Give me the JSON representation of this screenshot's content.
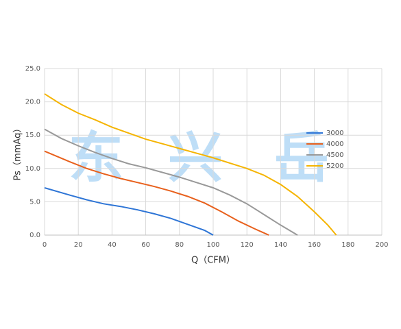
{
  "chart_data": {
    "type": "line",
    "x_label": "Q（CFM）",
    "y_label": "Ps（mmAq）",
    "watermark": [
      "东",
      "兴",
      "岳"
    ],
    "xlim": [
      0,
      200
    ],
    "xticks": [
      0,
      20,
      40,
      60,
      80,
      100,
      120,
      140,
      160,
      180,
      200
    ],
    "ylim": [
      0,
      25
    ],
    "yticks": [
      {
        "value": 0,
        "label": "0.0"
      },
      {
        "value": 5,
        "label": "5.0"
      },
      {
        "value": 10,
        "label": "10.0"
      },
      {
        "value": 15,
        "label": "15.0"
      },
      {
        "value": 20,
        "label": "20.0"
      },
      {
        "value": 25,
        "label": "25.0"
      }
    ],
    "grid": true,
    "legend": "right",
    "series": [
      {
        "name": "3000",
        "color": "#2e75d6",
        "x": [
          0,
          15,
          25,
          35,
          45,
          55,
          65,
          75,
          85,
          95,
          100
        ],
        "values": [
          7.1,
          6.0,
          5.3,
          4.7,
          4.3,
          3.8,
          3.2,
          2.5,
          1.6,
          0.7,
          0
        ]
      },
      {
        "name": "4000",
        "color": "#e8601c",
        "x": [
          0,
          15,
          25,
          35,
          45,
          55,
          65,
          75,
          85,
          95,
          105,
          115,
          125,
          133
        ],
        "values": [
          12.6,
          11.0,
          10.0,
          9.2,
          8.5,
          7.9,
          7.3,
          6.6,
          5.8,
          4.8,
          3.5,
          2.1,
          0.9,
          0
        ]
      },
      {
        "name": "4500",
        "color": "#999999",
        "x": [
          0,
          10,
          20,
          30,
          40,
          50,
          60,
          70,
          80,
          90,
          100,
          110,
          120,
          130,
          140,
          150
        ],
        "values": [
          15.9,
          14.5,
          13.4,
          12.4,
          11.5,
          10.7,
          10.1,
          9.4,
          8.7,
          7.9,
          7.1,
          6.0,
          4.7,
          3.1,
          1.5,
          0
        ]
      },
      {
        "name": "5200",
        "color": "#f5b400",
        "x": [
          0,
          10,
          20,
          30,
          40,
          50,
          60,
          70,
          80,
          90,
          100,
          110,
          120,
          130,
          140,
          150,
          160,
          168,
          173
        ],
        "values": [
          21.2,
          19.6,
          18.3,
          17.3,
          16.2,
          15.3,
          14.4,
          13.7,
          13.0,
          12.3,
          11.6,
          10.8,
          10.0,
          9.0,
          7.6,
          5.8,
          3.5,
          1.5,
          0
        ]
      }
    ]
  }
}
